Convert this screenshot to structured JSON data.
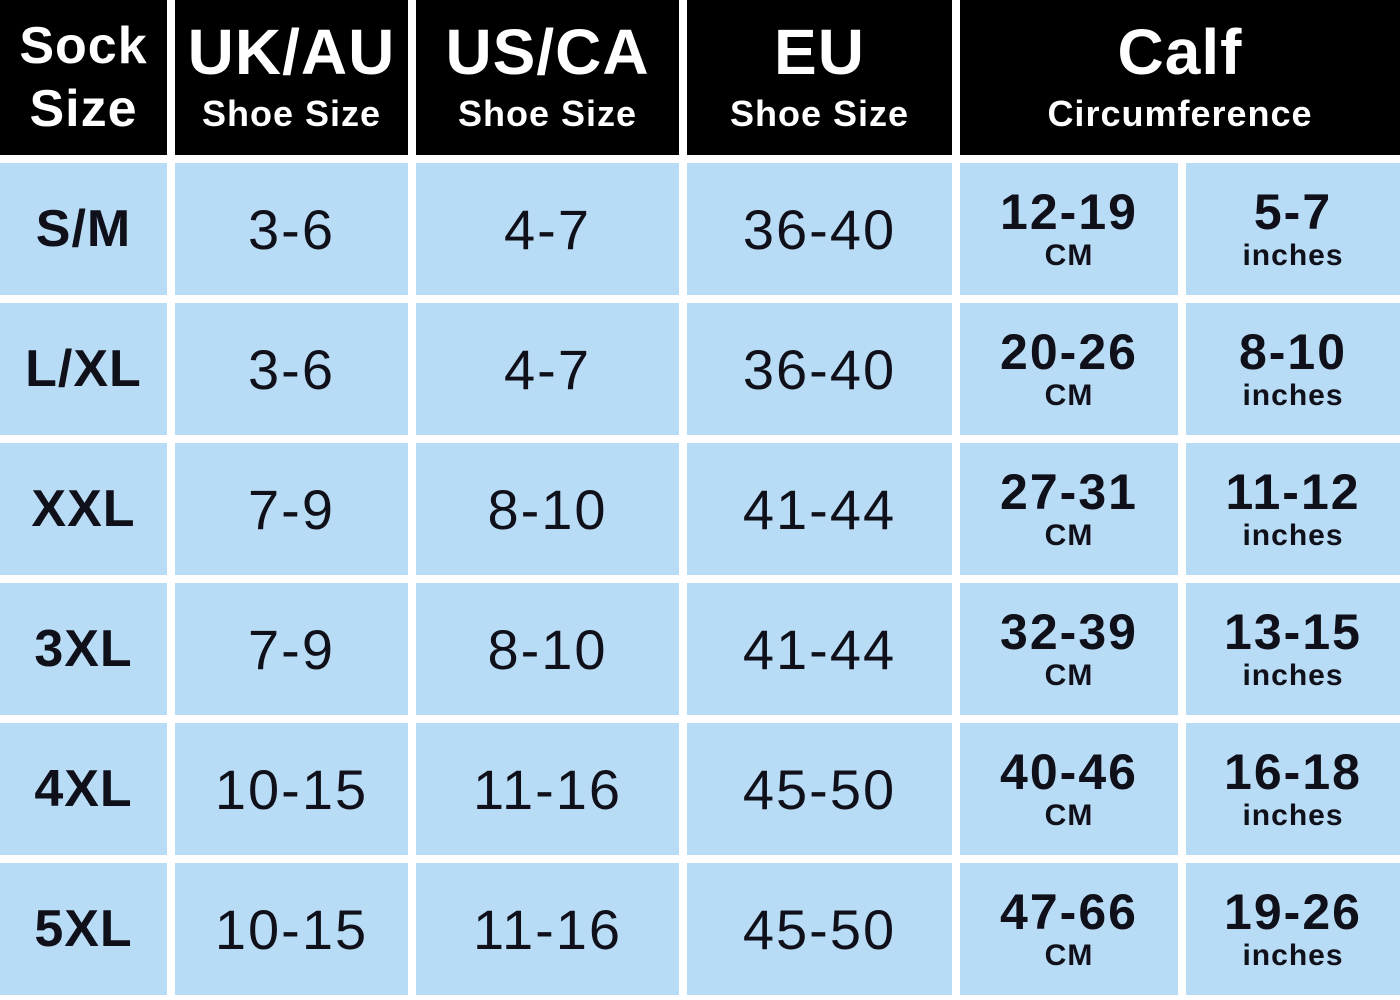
{
  "colors": {
    "header_bg": "#000000",
    "header_text": "#ffffff",
    "row_bg": "#b8dcf5",
    "divider": "#ffffff",
    "cell_text": "#10101a"
  },
  "header": {
    "sock_size_line1": "Sock",
    "sock_size_line2": "Size",
    "uk_au_main": "UK/AU",
    "uk_au_sub": "Shoe Size",
    "us_ca_main": "US/CA",
    "us_ca_sub": "Shoe Size",
    "eu_main": "EU",
    "eu_sub": "Shoe Size",
    "calf_main": "Calf",
    "calf_sub": "Circumference"
  },
  "units": {
    "cm": "CM",
    "inches": "inches"
  },
  "table": {
    "rows": [
      {
        "size": "S/M",
        "uk_au": "3-6",
        "us_ca": "4-7",
        "eu": "36-40",
        "calf_cm": "12-19",
        "calf_in": "5-7"
      },
      {
        "size": "L/XL",
        "uk_au": "3-6",
        "us_ca": "4-7",
        "eu": "36-40",
        "calf_cm": "20-26",
        "calf_in": "8-10"
      },
      {
        "size": "XXL",
        "uk_au": "7-9",
        "us_ca": "8-10",
        "eu": "41-44",
        "calf_cm": "27-31",
        "calf_in": "11-12"
      },
      {
        "size": "3XL",
        "uk_au": "7-9",
        "us_ca": "8-10",
        "eu": "41-44",
        "calf_cm": "32-39",
        "calf_in": "13-15"
      },
      {
        "size": "4XL",
        "uk_au": "10-15",
        "us_ca": "11-16",
        "eu": "45-50",
        "calf_cm": "40-46",
        "calf_in": "16-18"
      },
      {
        "size": "5XL",
        "uk_au": "10-15",
        "us_ca": "11-16",
        "eu": "45-50",
        "calf_cm": "47-66",
        "calf_in": "19-26"
      }
    ]
  },
  "chart_data": {
    "type": "table",
    "columns": [
      "Sock Size",
      "UK/AU Shoe Size",
      "US/CA Shoe Size",
      "EU Shoe Size",
      "Calf Circumference CM",
      "Calf Circumference inches"
    ],
    "rows": [
      [
        "S/M",
        "3-6",
        "4-7",
        "36-40",
        "12-19",
        "5-7"
      ],
      [
        "L/XL",
        "3-6",
        "4-7",
        "36-40",
        "20-26",
        "8-10"
      ],
      [
        "XXL",
        "7-9",
        "8-10",
        "41-44",
        "27-31",
        "11-12"
      ],
      [
        "3XL",
        "7-9",
        "8-10",
        "41-44",
        "32-39",
        "13-15"
      ],
      [
        "4XL",
        "10-15",
        "11-16",
        "45-50",
        "40-46",
        "16-18"
      ],
      [
        "5XL",
        "10-15",
        "11-16",
        "45-50",
        "47-66",
        "19-26"
      ]
    ]
  }
}
